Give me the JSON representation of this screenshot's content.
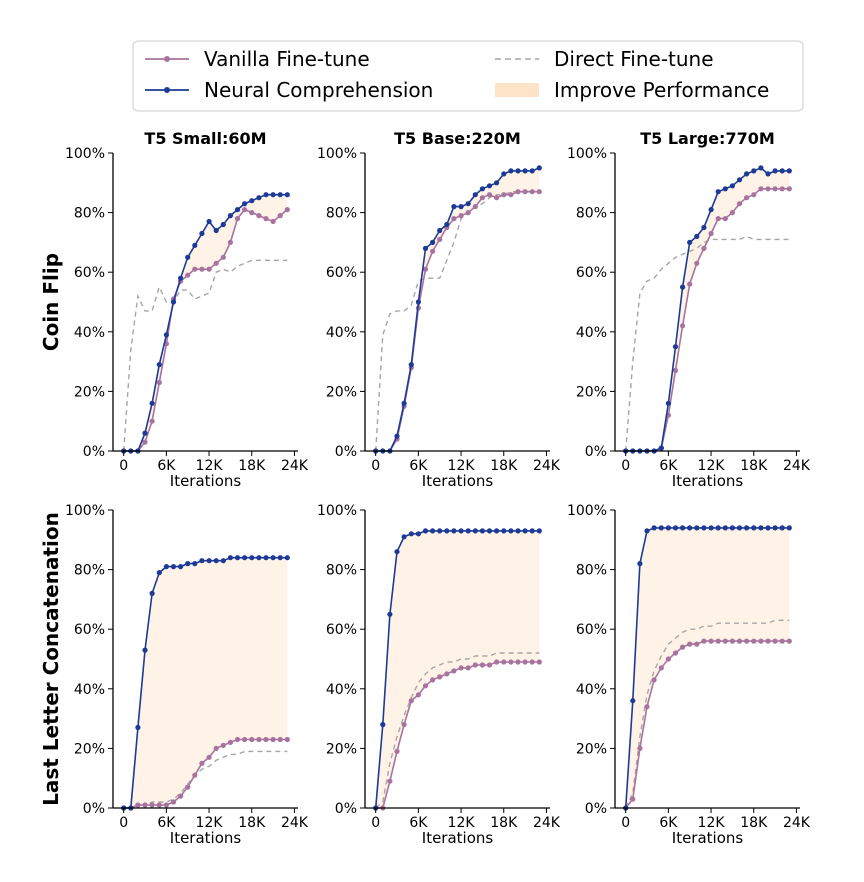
{
  "colors": {
    "vanilla": "#a8739f",
    "neural": "#1c3a96",
    "direct": "#a6a6a6",
    "improve": "#fde4c8",
    "axis": "#000000"
  },
  "legend": [
    {
      "key": "vanilla",
      "label": "Vanilla Fine-tune",
      "style": "line-marker"
    },
    {
      "key": "direct",
      "label": "Direct Fine-tune",
      "style": "dashed"
    },
    {
      "key": "neural",
      "label": "Neural Comprehension",
      "style": "line-marker"
    },
    {
      "key": "improve",
      "label": "Improve Performance",
      "style": "fill"
    }
  ],
  "columns": [
    "T5 Small:60M",
    "T5 Base:220M",
    "T5 Large:770M"
  ],
  "rows": [
    "Coin Flip",
    "Last Letter Concatenation"
  ],
  "axes": {
    "xlabel": "Iterations",
    "xticks": [
      0,
      6000,
      12000,
      18000,
      24000
    ],
    "xtick_labels": [
      "0",
      "6K",
      "12K",
      "18K",
      "24K"
    ],
    "yticks": [
      0,
      20,
      40,
      60,
      80,
      100
    ],
    "ytick_labels": [
      "0%",
      "20%",
      "40%",
      "60%",
      "80%",
      "100%"
    ],
    "xlim": [
      -1500,
      24500
    ],
    "ylim": [
      0,
      100
    ]
  },
  "chart_data": [
    {
      "type": "line",
      "row": "Coin Flip",
      "title": "T5 Small:60M",
      "xlabel": "Iterations",
      "ylabel": "",
      "ylim": [
        0,
        100
      ],
      "x": [
        0,
        1000,
        2000,
        3000,
        4000,
        5000,
        6000,
        7000,
        8000,
        9000,
        10000,
        11000,
        12000,
        13000,
        14000,
        15000,
        16000,
        17000,
        18000,
        19000,
        20000,
        21000,
        22000,
        23000
      ],
      "series": [
        {
          "name": "Vanilla Fine-tune",
          "key": "vanilla",
          "values": [
            0,
            0,
            0,
            3,
            10,
            23,
            36,
            51,
            57,
            59,
            61,
            61,
            61,
            63,
            65,
            70,
            78,
            81,
            80,
            79,
            78,
            77,
            79,
            81
          ]
        },
        {
          "name": "Neural Comprehension",
          "key": "neural",
          "values": [
            0,
            0,
            0,
            6,
            16,
            29,
            39,
            50,
            58,
            65,
            69,
            73,
            77,
            74,
            76,
            79,
            81,
            83,
            84,
            85,
            86,
            86,
            86,
            86
          ]
        },
        {
          "name": "Direct Fine-tune",
          "key": "direct",
          "values": [
            0,
            34,
            52,
            47,
            47,
            55,
            50,
            50,
            54,
            54,
            51,
            52,
            53,
            60,
            61,
            60,
            62,
            63,
            64,
            64,
            64,
            64,
            64,
            64
          ]
        }
      ]
    },
    {
      "type": "line",
      "row": "Coin Flip",
      "title": "T5 Base:220M",
      "xlabel": "Iterations",
      "ylabel": "",
      "ylim": [
        0,
        100
      ],
      "x": [
        0,
        1000,
        2000,
        3000,
        4000,
        5000,
        6000,
        7000,
        8000,
        9000,
        10000,
        11000,
        12000,
        13000,
        14000,
        15000,
        16000,
        17000,
        18000,
        19000,
        20000,
        21000,
        22000,
        23000
      ],
      "series": [
        {
          "name": "Vanilla Fine-tune",
          "key": "vanilla",
          "values": [
            0,
            0,
            0,
            4,
            15,
            28,
            48,
            61,
            67,
            71,
            75,
            78,
            79,
            80,
            82,
            85,
            86,
            85,
            86,
            86,
            87,
            87,
            87,
            87
          ]
        },
        {
          "name": "Neural Comprehension",
          "key": "neural",
          "values": [
            0,
            0,
            0,
            5,
            16,
            29,
            50,
            68,
            70,
            74,
            76,
            82,
            82,
            83,
            86,
            88,
            89,
            90,
            93,
            94,
            94,
            94,
            94,
            95
          ]
        },
        {
          "name": "Direct Fine-tune",
          "key": "direct",
          "values": [
            0,
            39,
            46,
            47,
            47,
            49,
            57,
            58,
            58,
            58,
            64,
            70,
            78,
            80,
            82,
            83,
            85,
            86,
            86,
            87,
            87,
            87,
            87,
            87
          ]
        }
      ]
    },
    {
      "type": "line",
      "row": "Coin Flip",
      "title": "T5 Large:770M",
      "xlabel": "Iterations",
      "ylabel": "",
      "ylim": [
        0,
        100
      ],
      "x": [
        0,
        1000,
        2000,
        3000,
        4000,
        5000,
        6000,
        7000,
        8000,
        9000,
        10000,
        11000,
        12000,
        13000,
        14000,
        15000,
        16000,
        17000,
        18000,
        19000,
        20000,
        21000,
        22000,
        23000
      ],
      "series": [
        {
          "name": "Vanilla Fine-tune",
          "key": "vanilla",
          "values": [
            0,
            0,
            0,
            0,
            0,
            1,
            12,
            27,
            42,
            56,
            63,
            68,
            73,
            78,
            78,
            80,
            83,
            85,
            86,
            88,
            88,
            88,
            88,
            88
          ]
        },
        {
          "name": "Neural Comprehension",
          "key": "neural",
          "values": [
            0,
            0,
            0,
            0,
            0,
            1,
            16,
            35,
            55,
            70,
            72,
            75,
            81,
            87,
            88,
            89,
            91,
            93,
            94,
            95,
            93,
            94,
            94,
            94
          ]
        },
        {
          "name": "Direct Fine-tune",
          "key": "direct",
          "values": [
            0,
            30,
            53,
            57,
            58,
            61,
            63,
            65,
            66,
            67,
            68,
            70,
            71,
            71,
            71,
            71,
            71,
            72,
            71,
            71,
            71,
            71,
            71,
            71
          ]
        }
      ]
    },
    {
      "type": "line",
      "row": "Last Letter Concatenation",
      "title": "",
      "xlabel": "Iterations",
      "ylabel": "",
      "ylim": [
        0,
        100
      ],
      "x": [
        0,
        1000,
        2000,
        3000,
        4000,
        5000,
        6000,
        7000,
        8000,
        9000,
        10000,
        11000,
        12000,
        13000,
        14000,
        15000,
        16000,
        17000,
        18000,
        19000,
        20000,
        21000,
        22000,
        23000
      ],
      "series": [
        {
          "name": "Vanilla Fine-tune",
          "key": "vanilla",
          "values": [
            0,
            0,
            1,
            1,
            1,
            1,
            1,
            2,
            4,
            7,
            11,
            15,
            17,
            20,
            21,
            22,
            23,
            23,
            23,
            23,
            23,
            23,
            23,
            23
          ]
        },
        {
          "name": "Neural Comprehension",
          "key": "neural",
          "values": [
            0,
            0,
            27,
            53,
            72,
            79,
            81,
            81,
            81,
            82,
            82,
            83,
            83,
            83,
            83,
            84,
            84,
            84,
            84,
            84,
            84,
            84,
            84,
            84
          ]
        },
        {
          "name": "Direct Fine-tune",
          "key": "direct",
          "values": [
            0,
            0,
            1,
            1,
            2,
            2,
            2,
            3,
            5,
            8,
            11,
            13,
            14,
            16,
            17,
            18,
            18,
            19,
            19,
            19,
            19,
            19,
            19,
            19
          ]
        }
      ]
    },
    {
      "type": "line",
      "row": "Last Letter Concatenation",
      "title": "",
      "xlabel": "Iterations",
      "ylabel": "",
      "ylim": [
        0,
        100
      ],
      "x": [
        0,
        1000,
        2000,
        3000,
        4000,
        5000,
        6000,
        7000,
        8000,
        9000,
        10000,
        11000,
        12000,
        13000,
        14000,
        15000,
        16000,
        17000,
        18000,
        19000,
        20000,
        21000,
        22000,
        23000
      ],
      "series": [
        {
          "name": "Vanilla Fine-tune",
          "key": "vanilla",
          "values": [
            0,
            0,
            9,
            19,
            28,
            36,
            38,
            41,
            43,
            44,
            45,
            46,
            47,
            47,
            48,
            48,
            48,
            49,
            49,
            49,
            49,
            49,
            49,
            49
          ]
        },
        {
          "name": "Neural Comprehension",
          "key": "neural",
          "values": [
            0,
            28,
            65,
            86,
            91,
            92,
            92,
            93,
            93,
            93,
            93,
            93,
            93,
            93,
            93,
            93,
            93,
            93,
            93,
            93,
            93,
            93,
            93,
            93
          ]
        },
        {
          "name": "Direct Fine-tune",
          "key": "direct",
          "values": [
            0,
            2,
            15,
            24,
            31,
            37,
            42,
            45,
            47,
            48,
            49,
            49,
            50,
            50,
            51,
            51,
            51,
            52,
            52,
            52,
            52,
            52,
            52,
            52
          ]
        }
      ]
    },
    {
      "type": "line",
      "row": "Last Letter Concatenation",
      "title": "",
      "xlabel": "Iterations",
      "ylabel": "",
      "ylim": [
        0,
        100
      ],
      "x": [
        0,
        1000,
        2000,
        3000,
        4000,
        5000,
        6000,
        7000,
        8000,
        9000,
        10000,
        11000,
        12000,
        13000,
        14000,
        15000,
        16000,
        17000,
        18000,
        19000,
        20000,
        21000,
        22000,
        23000
      ],
      "series": [
        {
          "name": "Vanilla Fine-tune",
          "key": "vanilla",
          "values": [
            0,
            3,
            20,
            34,
            43,
            47,
            50,
            52,
            54,
            55,
            55,
            56,
            56,
            56,
            56,
            56,
            56,
            56,
            56,
            56,
            56,
            56,
            56,
            56
          ]
        },
        {
          "name": "Neural Comprehension",
          "key": "neural",
          "values": [
            0,
            36,
            82,
            93,
            94,
            94,
            94,
            94,
            94,
            94,
            94,
            94,
            94,
            94,
            94,
            94,
            94,
            94,
            94,
            94,
            94,
            94,
            94,
            94
          ]
        },
        {
          "name": "Direct Fine-tune",
          "key": "direct",
          "values": [
            0,
            5,
            24,
            38,
            46,
            51,
            55,
            57,
            59,
            60,
            60,
            61,
            61,
            62,
            62,
            62,
            62,
            62,
            62,
            62,
            62,
            63,
            63,
            63
          ]
        }
      ]
    }
  ]
}
